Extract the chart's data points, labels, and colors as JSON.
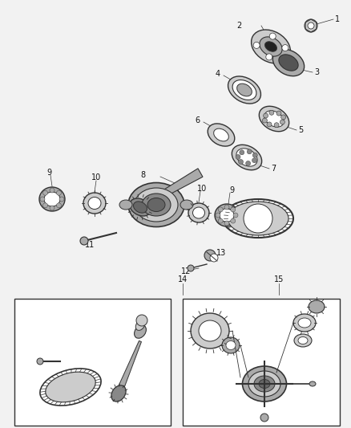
{
  "bg_color": "#f2f2f2",
  "white": "#ffffff",
  "lc": "#333333",
  "gray1": "#cccccc",
  "gray2": "#aaaaaa",
  "gray3": "#888888",
  "gray4": "#666666",
  "gray5": "#444444",
  "label_fs": 6.5,
  "fig_w": 4.38,
  "fig_h": 5.33,
  "dpi": 100
}
